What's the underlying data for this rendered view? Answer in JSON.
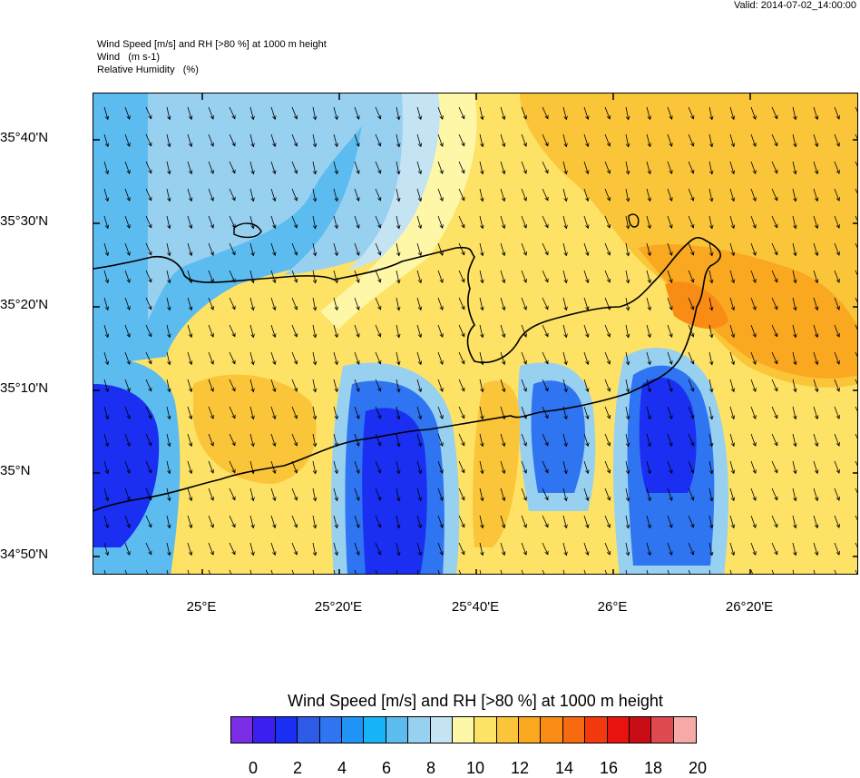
{
  "valid_time": "Valid: 2014-07-02_14:00:00",
  "titles": {
    "line1": "Wind Speed [m/s] and RH [>80 %] at 1000 m height",
    "line2": "Wind   (m s-1)",
    "line3": "Relative Humidity   (%)"
  },
  "lat_labels": [
    "35°40'N",
    "35°30'N",
    "35°20'N",
    "35°10'N",
    "35°N",
    "34°50'N"
  ],
  "lon_labels": [
    "25°E",
    "25°20'E",
    "25°40'E",
    "26°E",
    "26°20'E"
  ],
  "colorbar": {
    "title": "Wind Speed [m/s] and RH [>80 %] at 1000 m height",
    "colors": [
      "#7b2ee6",
      "#3a1ff0",
      "#1a2ff2",
      "#2e5ae8",
      "#2f74f0",
      "#1f94f6",
      "#17b4f8",
      "#5cbcf0",
      "#98d0f0",
      "#c4e4f4",
      "#fff7a8",
      "#fde266",
      "#fbc53a",
      "#f9a820",
      "#f98c14",
      "#f76a10",
      "#f23a0e",
      "#e8120e",
      "#c80e14",
      "#df4a50",
      "#f5aaa8"
    ],
    "ticks": [
      "0",
      "2",
      "4",
      "6",
      "8",
      "10",
      "12",
      "14",
      "16",
      "18",
      "20"
    ]
  },
  "map": {
    "region": "Crete",
    "wind_direction": "from north-northwest",
    "fill_colors": {
      "sea_north_west": "#5cbcf0",
      "sea_north_light": "#98d0f0",
      "north_east": "#fde266",
      "east_orange": "#fbc53a",
      "south_calm": "#1a2ff2",
      "south_medium": "#2f74f0",
      "boundary": "#fff7a8"
    }
  }
}
